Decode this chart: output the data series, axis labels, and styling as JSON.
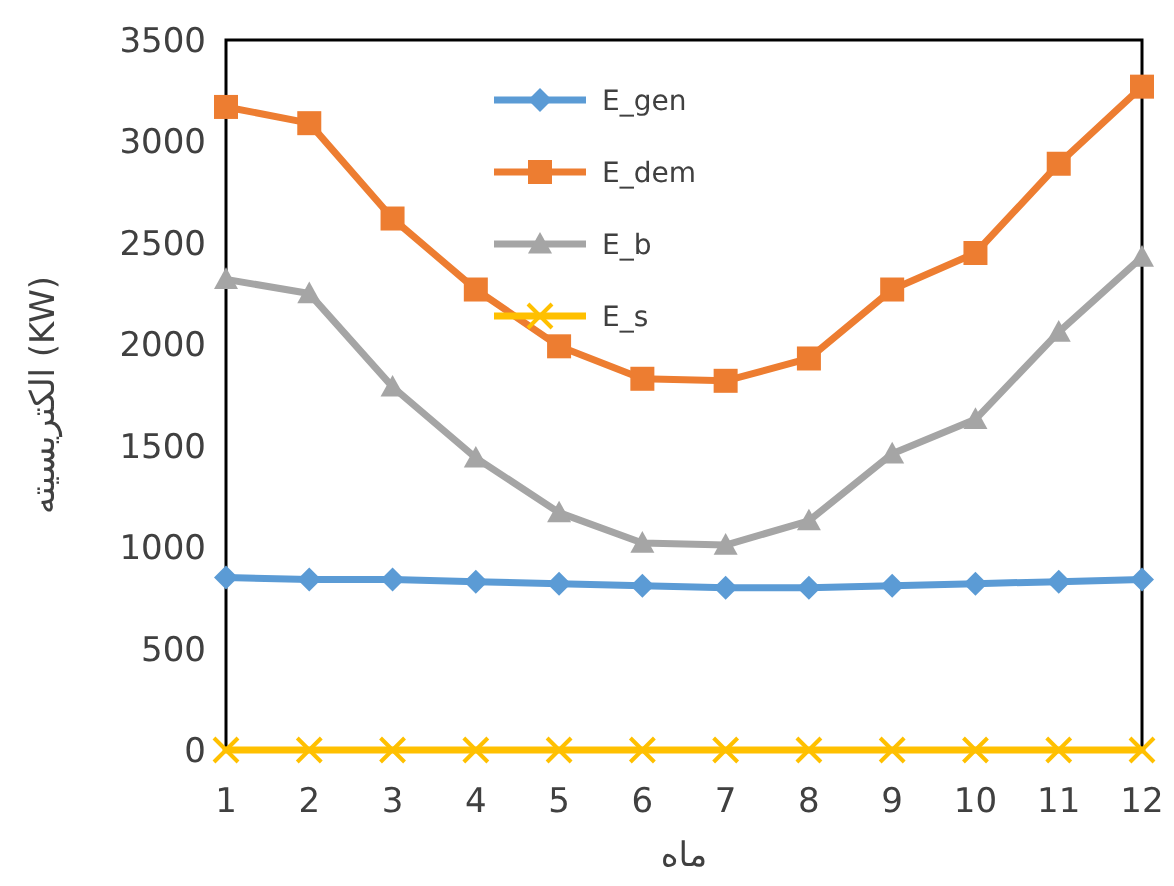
{
  "chart_data": {
    "type": "line",
    "xlabel": "ماه",
    "ylabel": "الکتریسیته (KW)",
    "x": [
      1,
      2,
      3,
      4,
      5,
      6,
      7,
      8,
      9,
      10,
      11,
      12
    ],
    "xlim": [
      1,
      12
    ],
    "xticks": [
      1,
      2,
      3,
      4,
      5,
      6,
      7,
      8,
      9,
      10,
      11,
      12
    ],
    "ylim": [
      0,
      3500
    ],
    "yticks": [
      0,
      500,
      1000,
      1500,
      2000,
      2500,
      3000,
      3500
    ],
    "grid": false,
    "legend": "top",
    "line_style": "solid",
    "series": [
      {
        "name": "E_gen",
        "color": "#5b9bd5",
        "marker": "diamond",
        "values": [
          850,
          840,
          840,
          830,
          820,
          810,
          800,
          800,
          810,
          820,
          830,
          840
        ]
      },
      {
        "name": "E_dem",
        "color": "#ed7d31",
        "marker": "square",
        "values": [
          3170,
          3090,
          2620,
          2270,
          1990,
          1830,
          1820,
          1930,
          2270,
          2450,
          2890,
          3270
        ]
      },
      {
        "name": "E_b",
        "color": "#a5a5a5",
        "marker": "triangle",
        "values": [
          2320,
          2250,
          1790,
          1440,
          1170,
          1020,
          1010,
          1130,
          1460,
          1630,
          2060,
          2430
        ]
      },
      {
        "name": "E_s",
        "color": "#ffc000",
        "marker": "cross",
        "values": [
          0,
          0,
          0,
          0,
          0,
          0,
          0,
          0,
          0,
          0,
          0,
          0
        ]
      }
    ]
  }
}
